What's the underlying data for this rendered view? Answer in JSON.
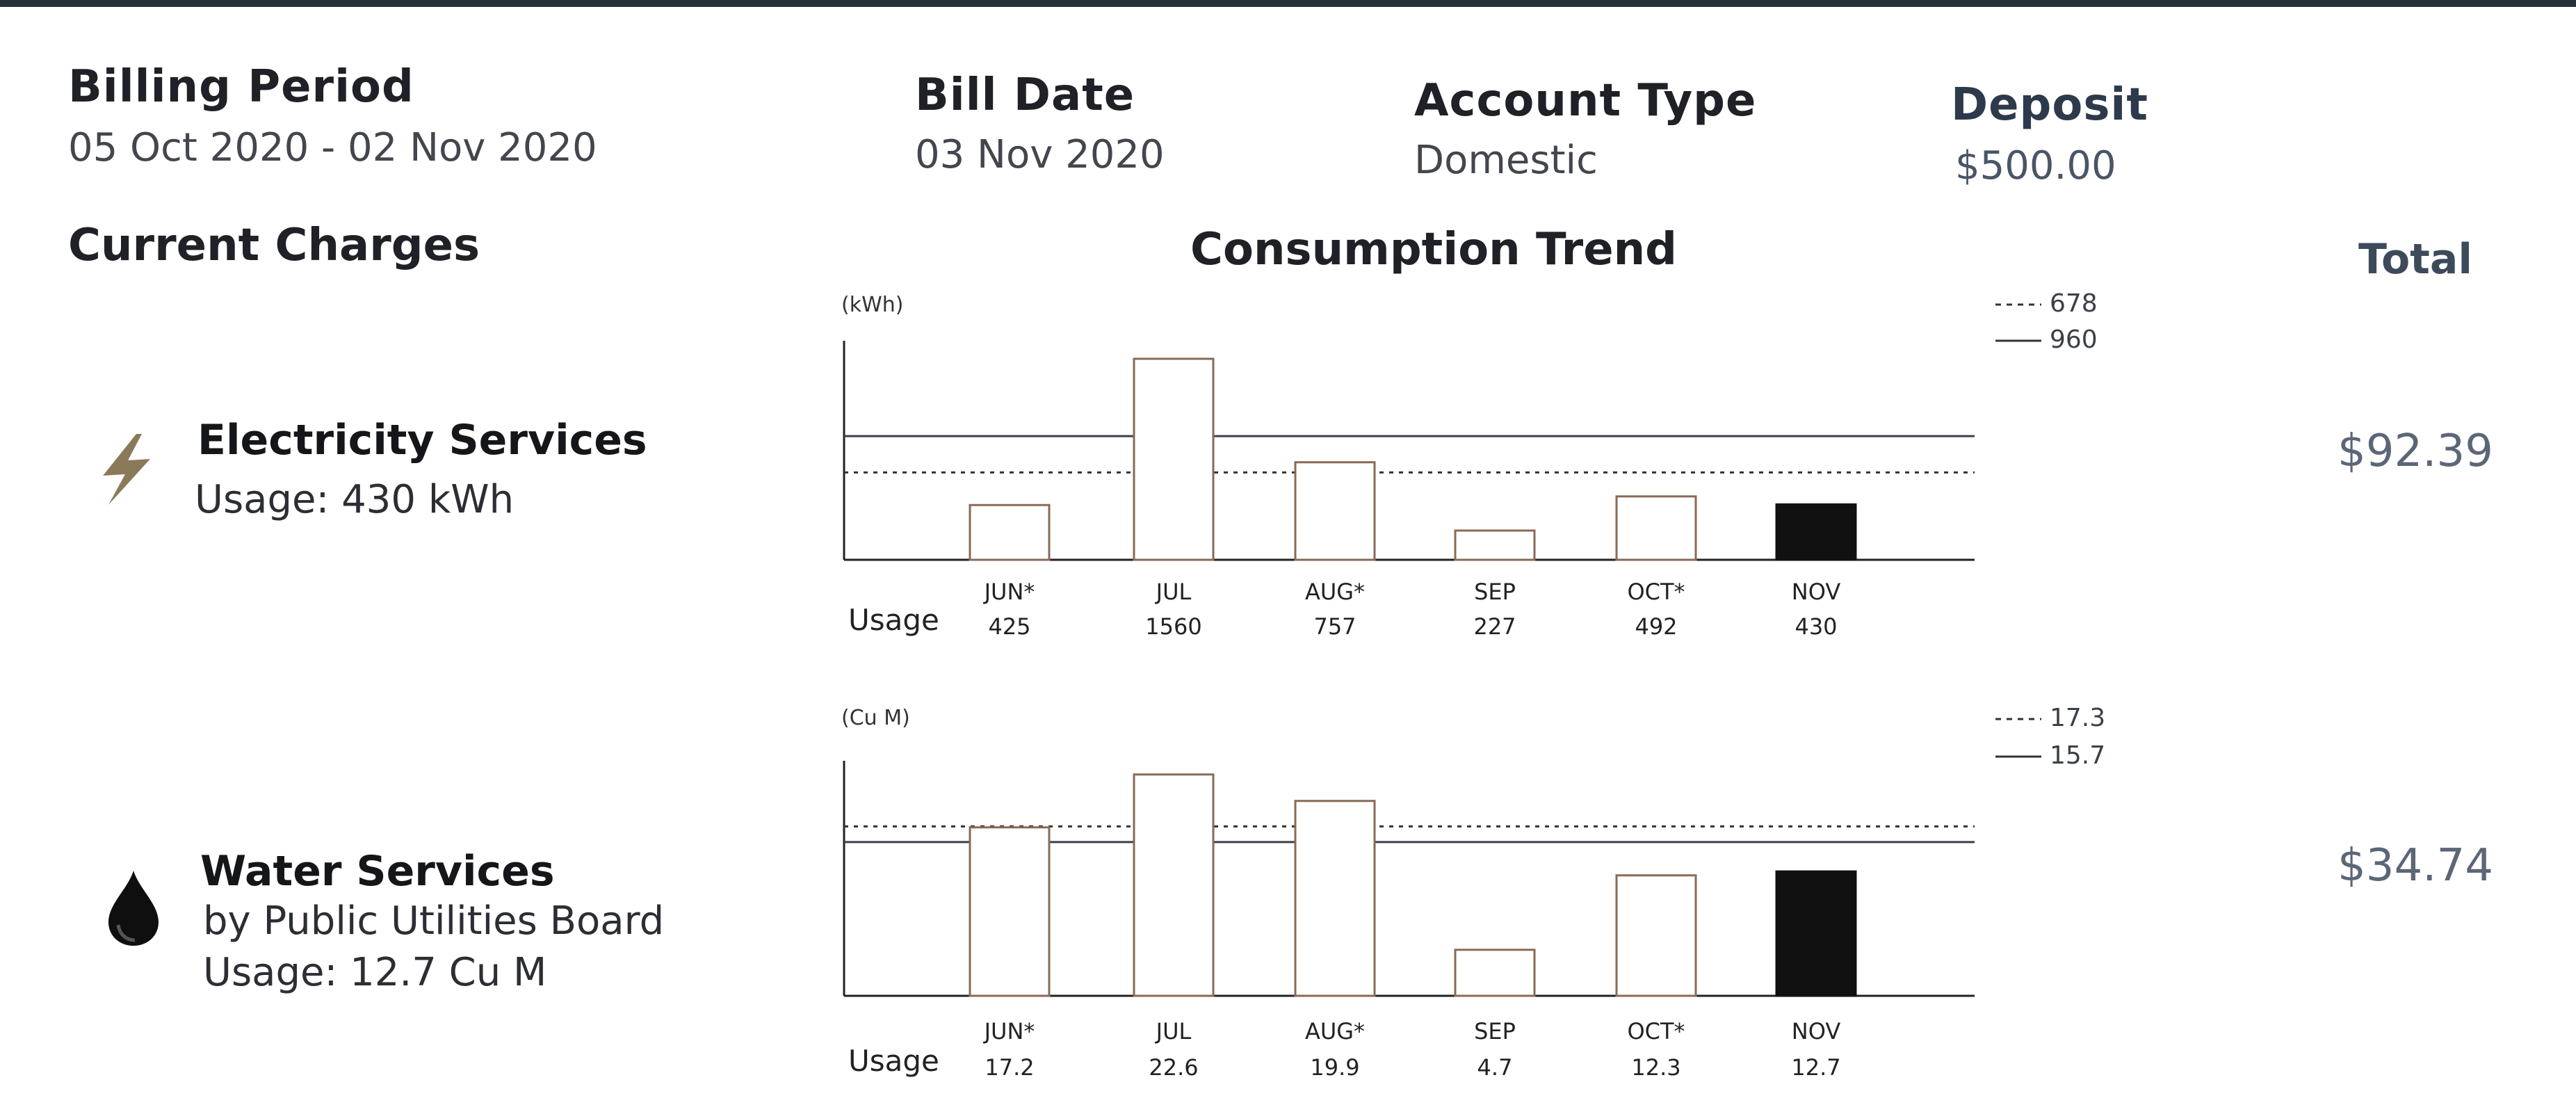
{
  "header": {
    "billing_period": {
      "label": "Billing Period",
      "value": "05 Oct 2020 - 02 Nov 2020"
    },
    "bill_date": {
      "label": "Bill Date",
      "value": "03 Nov 2020"
    },
    "account_type": {
      "label": "Account Type",
      "value": "Domestic"
    },
    "deposit": {
      "label": "Deposit",
      "value": "$500.00"
    }
  },
  "current_charges": {
    "title": "Current Charges"
  },
  "consumption_trend": {
    "title": "Consumption Trend"
  },
  "total": {
    "title": "Total"
  },
  "services": [
    {
      "icon": "lightning-bolt-icon",
      "title": "Electricity Services",
      "subtitle": "",
      "usage": "Usage: 430 kWh",
      "total": "$92.39"
    },
    {
      "icon": "water-drop-icon",
      "title": "Water Services",
      "subtitle": "by Public Utilities Board",
      "usage": "Usage: 12.7 Cu M",
      "total": "$34.74"
    }
  ],
  "chart_data": [
    {
      "type": "bar",
      "unit": "(kWh)",
      "row_label": "Usage",
      "categories": [
        "JUN*",
        "JUL",
        "AUG*",
        "SEP",
        "OCT*",
        "NOV"
      ],
      "values": [
        425,
        1560,
        757,
        227,
        492,
        430
      ],
      "value_labels": [
        "425",
        "1560",
        "757",
        "227",
        "492",
        "430"
      ],
      "highlight_index": 5,
      "reference_lines": [
        {
          "style": "dashed",
          "label": "678",
          "value": 678
        },
        {
          "style": "solid",
          "label": "960",
          "value": 960
        }
      ],
      "ylim": [
        0,
        1700
      ]
    },
    {
      "type": "bar",
      "unit": "(Cu M)",
      "row_label": "Usage",
      "categories": [
        "JUN*",
        "JUL",
        "AUG*",
        "SEP",
        "OCT*",
        "NOV"
      ],
      "values": [
        17.2,
        22.6,
        19.9,
        4.7,
        12.3,
        12.7
      ],
      "value_labels": [
        "17.2",
        "22.6",
        "19.9",
        "4.7",
        "12.3",
        "12.7"
      ],
      "highlight_index": 5,
      "reference_lines": [
        {
          "style": "dashed",
          "label": "17.3",
          "value": 17.3
        },
        {
          "style": "solid",
          "label": "15.7",
          "value": 15.7
        }
      ],
      "ylim": [
        0,
        24
      ]
    }
  ],
  "colors": {
    "bar_outline": "#8a6a55",
    "bar_highlight": "#111111",
    "axis": "#222222",
    "solid_line": "#3a3f4a",
    "dashed_line": "#333333",
    "electric_icon": "#8a7a5a",
    "water_icon": "#0f0f0f"
  }
}
